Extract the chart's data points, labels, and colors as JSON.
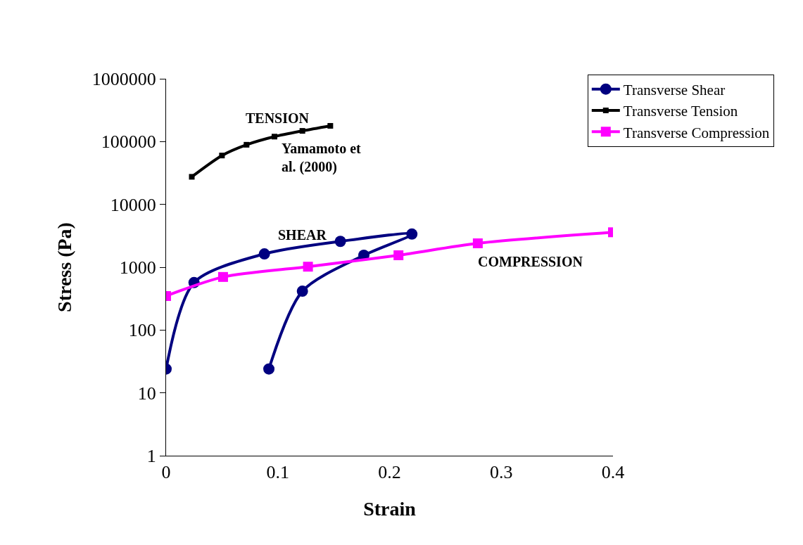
{
  "chart_data": {
    "type": "line",
    "xlabel": "Strain",
    "ylabel": "Stress (Pa)",
    "log": "y",
    "xlim": [
      0,
      0.4
    ],
    "xticks": [
      0,
      0.1,
      0.2,
      0.3,
      0.4
    ],
    "ylim": [
      1,
      1000000
    ],
    "yticks": [
      1,
      10,
      100,
      1000,
      10000,
      100000,
      1000000
    ],
    "legend": "top right",
    "series": [
      {
        "name": "Transverse Shear",
        "color": "#000080",
        "marker": "circle",
        "x": [
          0,
          0.025,
          0.088,
          0.156,
          0.22,
          0.177,
          0.122,
          0.092
        ],
        "values": [
          24,
          570,
          1630,
          2580,
          3370,
          1550,
          415,
          24
        ]
      },
      {
        "name": "Transverse Tension",
        "color": "#000000",
        "marker": "square",
        "x": [
          0.023,
          0.05,
          0.072,
          0.097,
          0.122,
          0.147
        ],
        "values": [
          27500,
          60000,
          89000,
          120000,
          148000,
          178000
        ]
      },
      {
        "name": "Transverse Compression",
        "color": "#ff00ff",
        "marker": "square",
        "x": [
          0,
          0.051,
          0.127,
          0.208,
          0.279,
          0.4
        ],
        "values": [
          348,
          700,
          1020,
          1550,
          2400,
          3600
        ]
      }
    ],
    "annotations": [
      "TENSION",
      "Yamamoto et\nal. (2000)",
      "SHEAR",
      "COMPRESSION"
    ]
  }
}
